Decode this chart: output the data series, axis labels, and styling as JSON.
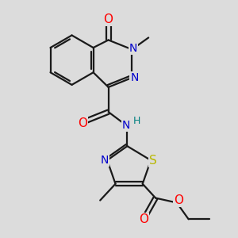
{
  "bg_color": "#dcdcdc",
  "bond_color": "#1a1a1a",
  "bond_width": 1.6,
  "atom_colors": {
    "O": "#ff0000",
    "N": "#0000cc",
    "S": "#b8b800",
    "H": "#008080",
    "C": "#1a1a1a"
  },
  "font_size": 9,
  "dbo": 0.12
}
